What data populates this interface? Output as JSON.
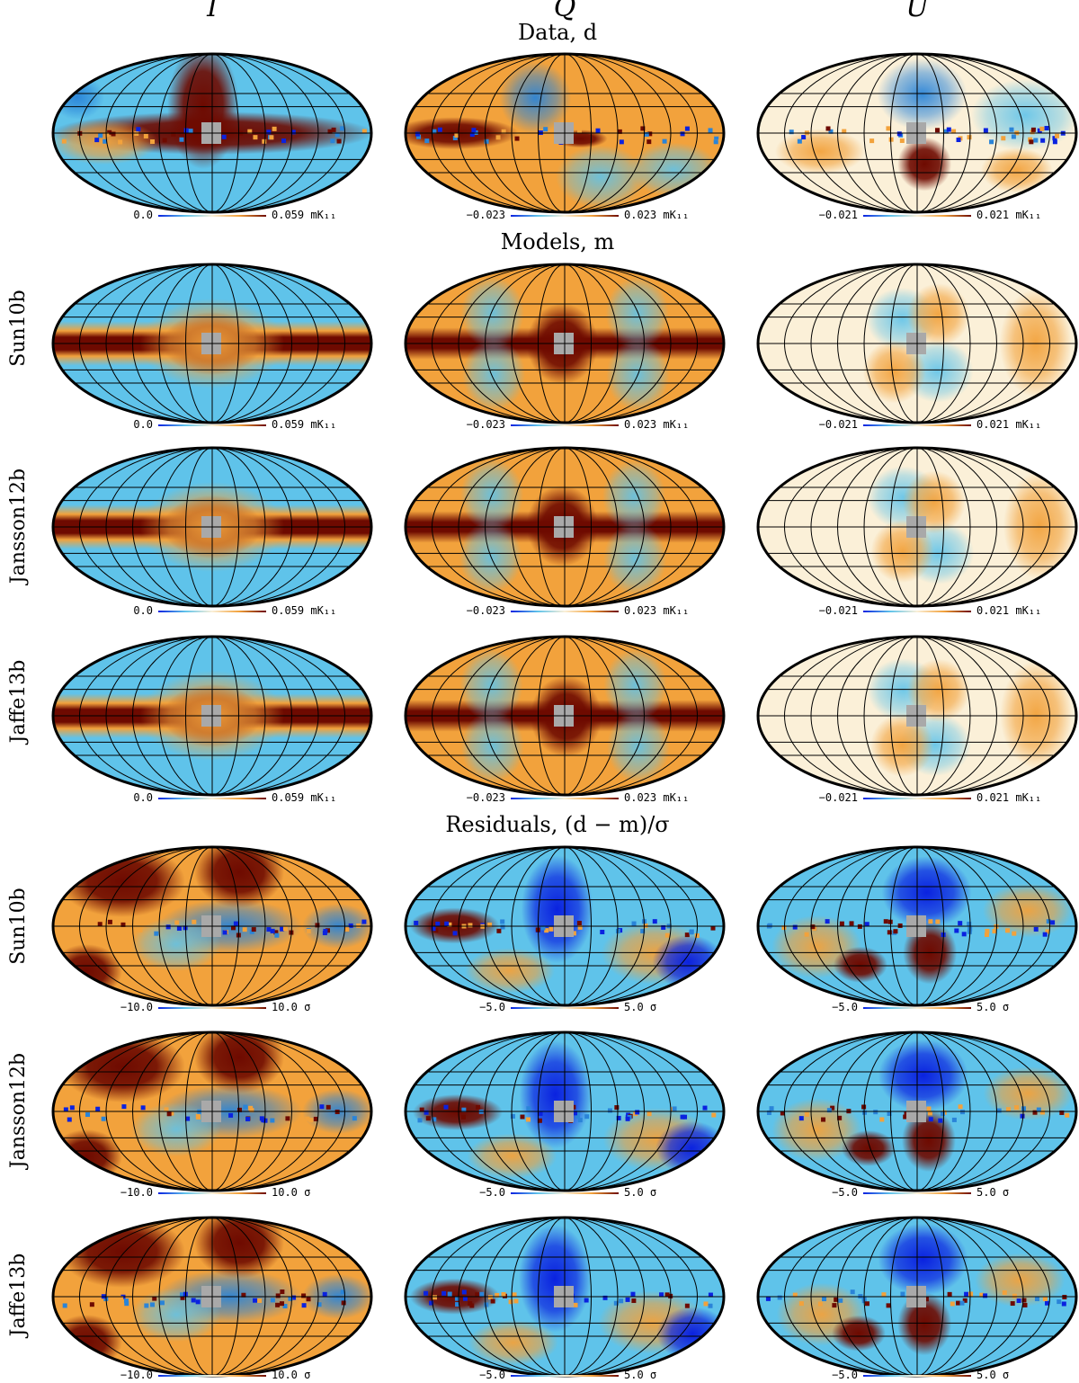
{
  "columns": [
    "I",
    "Q",
    "U"
  ],
  "sections": {
    "data": "Data, d",
    "models": "Models, m",
    "residuals": "Residuals, (d − m)/σ"
  },
  "model_names": [
    "Sun10b",
    "Jansson12b",
    "Jaffe13b"
  ],
  "colorbars": {
    "I": {
      "min": "0.0",
      "max": "0.059",
      "unit": "mK₁₁"
    },
    "Q": {
      "min": "−0.023",
      "max": "0.023",
      "unit": "mK₁₁"
    },
    "U": {
      "min": "−0.021",
      "max": "0.021",
      "unit": "mK₁₁"
    },
    "resI": {
      "min": "−10.0",
      "max": "10.0",
      "unit": "σ"
    },
    "resQ": {
      "min": "−5.0",
      "max": "5.0",
      "unit": "σ"
    },
    "resU": {
      "min": "−5.0",
      "max": "5.0",
      "unit": "σ"
    }
  },
  "colors": {
    "dark_red": "#6e0a00",
    "orange": "#f2a23c",
    "cream": "#fbf0d8",
    "light_blue": "#5fc3ea",
    "blue": "#2a84d8",
    "deep_blue": "#0a22e0",
    "mask_gray": "#a9a9a9"
  }
}
